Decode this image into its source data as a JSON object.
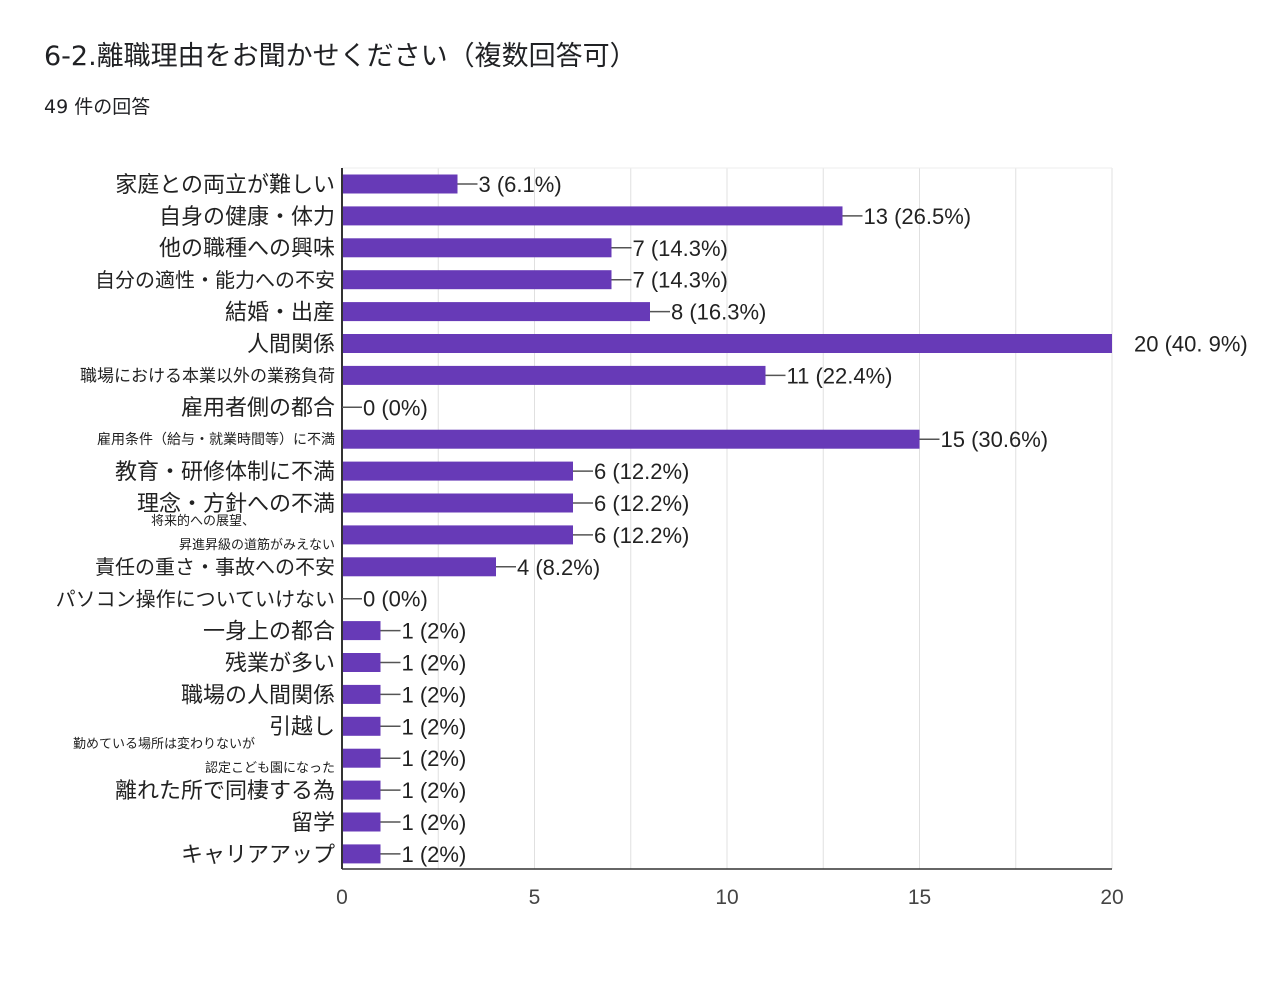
{
  "header": {
    "title": "6-2.離職理由をお聞かせください（複数回答可）",
    "response_count": "49 件の回答"
  },
  "colors": {
    "bar": "#673ab7",
    "grid": "#e0e0e0",
    "axis": "#333333"
  },
  "chart_data": {
    "type": "bar",
    "orientation": "horizontal",
    "categories": [
      [
        "家庭との両立が難しい"
      ],
      [
        "自身の健康・体力"
      ],
      [
        "他の職種への興味"
      ],
      [
        "自分の適性・能力への不安"
      ],
      [
        "結婚・出産"
      ],
      [
        "人間関係"
      ],
      [
        "職場における本業以外の業務負荷"
      ],
      [
        "雇用者側の都合"
      ],
      [
        "雇用条件（給与・就業時間等）に不満"
      ],
      [
        "教育・研修体制に不満"
      ],
      [
        "理念・方針への不満"
      ],
      [
        "将来的への展望、",
        "昇進昇級の道筋がみえない"
      ],
      [
        "責任の重さ・事故への不安"
      ],
      [
        "パソコン操作についていけない"
      ],
      [
        "一身上の都合"
      ],
      [
        "残業が多い"
      ],
      [
        "職場の人間関係"
      ],
      [
        "引越し"
      ],
      [
        "勤めている場所は変わりないが",
        "認定こども園になった"
      ],
      [
        "離れた所で同棲する為"
      ],
      [
        "留学"
      ],
      [
        "キャリアアップ"
      ]
    ],
    "values": [
      3,
      13,
      7,
      7,
      8,
      20,
      11,
      0,
      15,
      6,
      6,
      6,
      4,
      0,
      1,
      1,
      1,
      1,
      1,
      1,
      1,
      1
    ],
    "data_labels": [
      "3 (6.1%)",
      "13 (26.5%)",
      "7 (14.3%)",
      "7 (14.3%)",
      "8 (16.3%)",
      "20 (40. 9%)",
      "11 (22.4%)",
      "0 (0%)",
      "15 (30.6%)",
      "6 (12.2%)",
      "6 (12.2%)",
      "6 (12.2%)",
      "4 (8.2%)",
      "0 (0%)",
      "1 (2%)",
      "1 (2%)",
      "1 (2%)",
      "1 (2%)",
      "1 (2%)",
      "1 (2%)",
      "1 (2%)",
      "1 (2%)"
    ],
    "xlim": [
      0,
      20
    ],
    "xticks": [
      "0",
      "5",
      "10",
      "15",
      "20"
    ],
    "grid": true
  }
}
